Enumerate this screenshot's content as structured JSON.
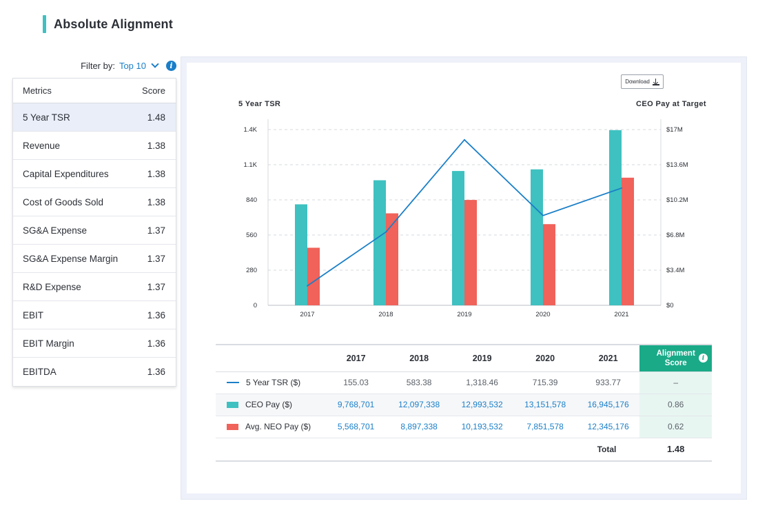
{
  "header": {
    "title": "Absolute Alignment"
  },
  "filter": {
    "label": "Filter by:",
    "value": "Top 10",
    "info_icon": "info-icon"
  },
  "metrics": {
    "headers": {
      "metric": "Metrics",
      "score": "Score"
    },
    "selected_index": 0,
    "rows": [
      {
        "name": "5 Year TSR",
        "score": "1.48"
      },
      {
        "name": "Revenue",
        "score": "1.38"
      },
      {
        "name": "Capital Expenditures",
        "score": "1.38"
      },
      {
        "name": "Cost of Goods Sold",
        "score": "1.38"
      },
      {
        "name": "SG&A Expense",
        "score": "1.37"
      },
      {
        "name": "SG&A Expense Margin",
        "score": "1.37"
      },
      {
        "name": "R&D Expense",
        "score": "1.37"
      },
      {
        "name": "EBIT",
        "score": "1.36"
      },
      {
        "name": "EBIT Margin",
        "score": "1.36"
      },
      {
        "name": "EBITDA",
        "score": "1.36"
      }
    ]
  },
  "chart": {
    "download_label": "Download",
    "left_axis_title": "5 Year TSR",
    "right_axis_title": "CEO Pay at Target",
    "colors": {
      "ceo": "#3ec1c0",
      "neo": "#f0625a",
      "tsr": "#1a7fc8"
    }
  },
  "chart_data": {
    "type": "bar",
    "categories": [
      "2017",
      "2018",
      "2019",
      "2020",
      "2021"
    ],
    "series": [
      {
        "name": "CEO Pay ($)",
        "type": "bar",
        "axis": "right",
        "values": [
          9768701,
          12097338,
          12993532,
          13151578,
          16945176
        ]
      },
      {
        "name": "Avg. NEO Pay ($)",
        "type": "bar",
        "axis": "right",
        "values": [
          5568701,
          8897338,
          10193532,
          7851578,
          12345176
        ]
      },
      {
        "name": "5 Year TSR ($)",
        "type": "line",
        "axis": "left",
        "values": [
          155.03,
          583.38,
          1318.46,
          715.39,
          933.77
        ]
      }
    ],
    "ylabel": "5 Year TSR",
    "ylabel_right": "CEO Pay at Target",
    "ylim": [
      0,
      1400
    ],
    "ylim_right": [
      0,
      17000000
    ],
    "y_ticks": [
      "0",
      "280",
      "560",
      "840",
      "1.1K",
      "1.4K"
    ],
    "y_ticks_right": [
      "$0",
      "$3.4M",
      "$6.8M",
      "$10.2M",
      "$13.6M",
      "$17M"
    ],
    "grid": true
  },
  "table": {
    "years": [
      "2017",
      "2018",
      "2019",
      "2020",
      "2021"
    ],
    "score_header": "Alignment Score",
    "rows": [
      {
        "label": "5 Year TSR ($)",
        "swatch": "line",
        "values": [
          "155.03",
          "583.38",
          "1,318.46",
          "715.39",
          "933.77"
        ],
        "score": "–"
      },
      {
        "label": "CEO Pay ($)",
        "swatch": "ceo",
        "values": [
          "9,768,701",
          "12,097,338",
          "12,993,532",
          "13,151,578",
          "16,945,176"
        ],
        "score": "0.86"
      },
      {
        "label": "Avg. NEO Pay ($)",
        "swatch": "neo",
        "values": [
          "5,568,701",
          "8,897,338",
          "10,193,532",
          "7,851,578",
          "12,345,176"
        ],
        "score": "0.62"
      }
    ],
    "total_label": "Total",
    "total_value": "1.48"
  }
}
